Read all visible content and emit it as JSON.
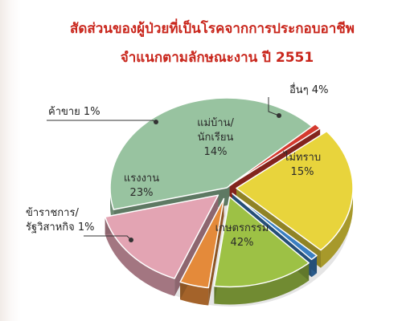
{
  "title_line1": "สัดส่วนของผู้ป่วยที่เป็นโรคจากการประกอบอาชีพ",
  "title_line2": "จำแนกตามลักษณะงาน ปี 2551",
  "chart_data": {
    "type": "pie",
    "title": "สัดส่วนของผู้ป่วยที่เป็นโรคจากการประกอบอาชีพ จำแนกตามลักษณะงาน ปี 2551",
    "slices": [
      {
        "label": "เกษตรกรรม",
        "label_lines": [
          "เกษตรกรรม"
        ],
        "value": 42,
        "value_text": "42%",
        "color": "#98c3a0"
      },
      {
        "label": "ข้าราชการ/รัฐวิสาหกิจ",
        "label_lines": [
          "ข้าราชการ/",
          "รัฐวิสาหกิจ"
        ],
        "value": 1,
        "value_text": "1%",
        "color": "#d43a2f"
      },
      {
        "label": "แรงงาน",
        "label_lines": [
          "แรงงาน"
        ],
        "value": 23,
        "value_text": "23%",
        "color": "#e8d43c"
      },
      {
        "label": "ค้าขาย",
        "label_lines": [
          "ค้าขาย"
        ],
        "value": 1,
        "value_text": "1%",
        "color": "#3b7fc1"
      },
      {
        "label": "แม่บ้าน/นักเรียน",
        "label_lines": [
          "แม่บ้าน/",
          "นักเรียน"
        ],
        "value": 14,
        "value_text": "14%",
        "color": "#9dc145"
      },
      {
        "label": "อื่นๆ",
        "label_lines": [
          "อื่นๆ"
        ],
        "value": 4,
        "value_text": "4%",
        "color": "#e48a3a"
      },
      {
        "label": "ไม่ทราบ",
        "label_lines": [
          "ไม่ทราบ"
        ],
        "value": 15,
        "value_text": "15%",
        "color": "#e3a4b3"
      }
    ]
  }
}
